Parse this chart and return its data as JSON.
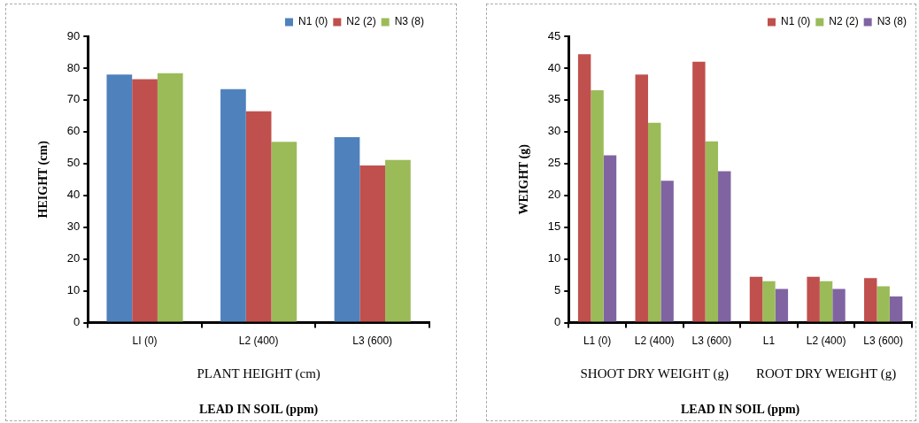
{
  "chart_data": [
    {
      "type": "bar",
      "ylabel": "HEIGHT (cm)",
      "xlabel": "LEAD IN SOIL (ppm)",
      "categories": [
        "LI (0)",
        "L2 (400)",
        "L3 (600)"
      ],
      "series": [
        {
          "name": "N1 (0)",
          "color": "#4f81bd",
          "values": [
            78.0,
            73.4,
            58.3
          ]
        },
        {
          "name": "N2 (2)",
          "color": "#c0504d",
          "values": [
            76.5,
            66.4,
            49.4
          ]
        },
        {
          "name": "N3 (8)",
          "color": "#9bbb59",
          "values": [
            78.4,
            56.8,
            51.1
          ]
        }
      ],
      "ylim": [
        0,
        90
      ],
      "yticks": [
        0,
        10,
        20,
        30,
        40,
        50,
        60,
        70,
        80,
        90
      ],
      "grid": false,
      "legend": "top right",
      "annotations": [
        "PLANT HEIGHT (cm)"
      ]
    },
    {
      "type": "bar",
      "ylabel": "WEIGHT (g)",
      "xlabel": "LEAD IN SOIL (ppm)",
      "categories": [
        "L1 (0)",
        "L2 (400)",
        "L3 (600)",
        "L1",
        "L2 (400)",
        "L3 (600)"
      ],
      "series": [
        {
          "name": "N1 (0)",
          "color": "#c0504d",
          "values": [
            42.2,
            39.0,
            41.0,
            7.2,
            7.2,
            7.0
          ]
        },
        {
          "name": "N2 (2)",
          "color": "#9bbb59",
          "values": [
            36.5,
            31.4,
            28.5,
            6.5,
            6.5,
            5.7
          ]
        },
        {
          "name": "N3 (8)",
          "color": "#8064a2",
          "values": [
            26.3,
            22.3,
            23.8,
            5.3,
            5.3,
            4.1
          ]
        }
      ],
      "ylim": [
        0,
        45
      ],
      "yticks": [
        0,
        5,
        10,
        15,
        20,
        25,
        30,
        35,
        40,
        45
      ],
      "grid": false,
      "legend": "top right",
      "annotations": [
        "SHOOT DRY WEIGHT (g)",
        "ROOT DRY WEIGHT (g)"
      ]
    }
  ]
}
